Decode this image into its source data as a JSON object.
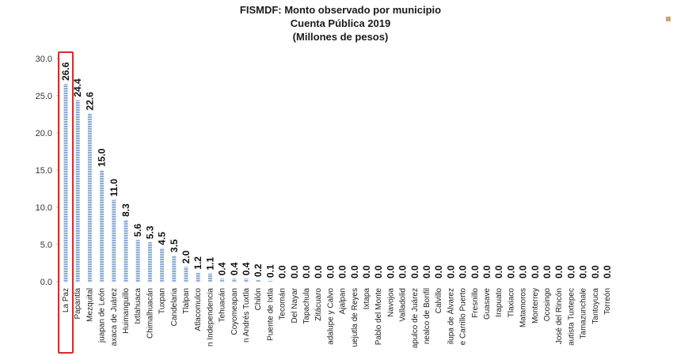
{
  "chart_data": {
    "type": "bar",
    "title": "FISMDF: Monto observado por municipio",
    "subtitle_lines": [
      "Cuenta Pública 2019",
      "(Millones de pesos)"
    ],
    "xlabel": "",
    "ylabel": "",
    "ylim": [
      0,
      30
    ],
    "yticks": [
      "0.0",
      "5.0",
      "10.0",
      "15.0",
      "20.0",
      "25.0",
      "30.0"
    ],
    "grid": false,
    "legend": "none",
    "highlighted_category": "La Paz",
    "colors": {
      "bar": "#8eaed6",
      "bar_stripe": "#ffffff",
      "highlight": "#d62b2b"
    },
    "categories": [
      "La Paz",
      "Papantla",
      "Mezquital",
      "juapan de León",
      "axaca de Juárez",
      "Huimanguillo",
      "Ixtlahuaca",
      "Chimalhuacán",
      "Tuxpan",
      "Candelaria",
      "Tlalpan",
      "Atlacomulco",
      "n Independencia",
      "Tehuacán",
      "Coyomeapan",
      "n Andrés Tuxtla",
      "Chilón",
      "Puente de Ixtla",
      "Tecomán",
      "Del Nayar",
      "Tapachula",
      "Zitácuaro",
      "adalupe y Calvo",
      "Ajalpan",
      "uejutla de Reyes",
      "Ixtapa",
      "Pablo del Monte",
      "Navojoa",
      "Valladolid",
      "apulco de Juárez",
      "nealco de Bonfil",
      "Calvillo",
      "ilupa de Álvarez",
      "e Carrillo Puerto",
      "Fresnillo",
      "Guasave",
      "Irapuato",
      "Tlaxiaco",
      "Matamoros",
      "Monterrey",
      "Ocosingo",
      "José del Rincón",
      "autista Tuxtepec",
      "Tamazunchale",
      "Tantoyuca",
      "Torreón"
    ],
    "values": [
      26.6,
      24.4,
      22.6,
      15.0,
      11.0,
      8.3,
      5.6,
      5.3,
      4.5,
      3.5,
      2.0,
      1.2,
      1.1,
      0.4,
      0.4,
      0.4,
      0.2,
      0.1,
      0.0,
      0.0,
      0.0,
      0.0,
      0.0,
      0.0,
      0.0,
      0.0,
      0.0,
      0.0,
      0.0,
      0.0,
      0.0,
      0.0,
      0.0,
      0.0,
      0.0,
      0.0,
      0.0,
      0.0,
      0.0,
      0.0,
      0.0,
      0.0,
      0.0,
      0.0,
      0.0,
      0.0
    ],
    "value_labels": [
      "26.6",
      "24.4",
      "22.6",
      "15.0",
      "11.0",
      "8.3",
      "5.6",
      "5.3",
      "4.5",
      "3.5",
      "2.0",
      "1.2",
      "1.1",
      "0.4",
      "0.4",
      "0.4",
      "0.2",
      "0.1",
      "0.0",
      "0.0",
      "0.0",
      "0.0",
      "0.0",
      "0.0",
      "0.0",
      "0.0",
      "0.0",
      "0.0",
      "0.0",
      "0.0",
      "0.0",
      "0.0",
      "0.0",
      "0.0",
      "0.0",
      "0.0",
      "0.0",
      "0.0",
      "0.0",
      "0.0",
      "0.0",
      "0.0",
      "0.0",
      "0.0",
      "0.0",
      "0.0"
    ]
  }
}
